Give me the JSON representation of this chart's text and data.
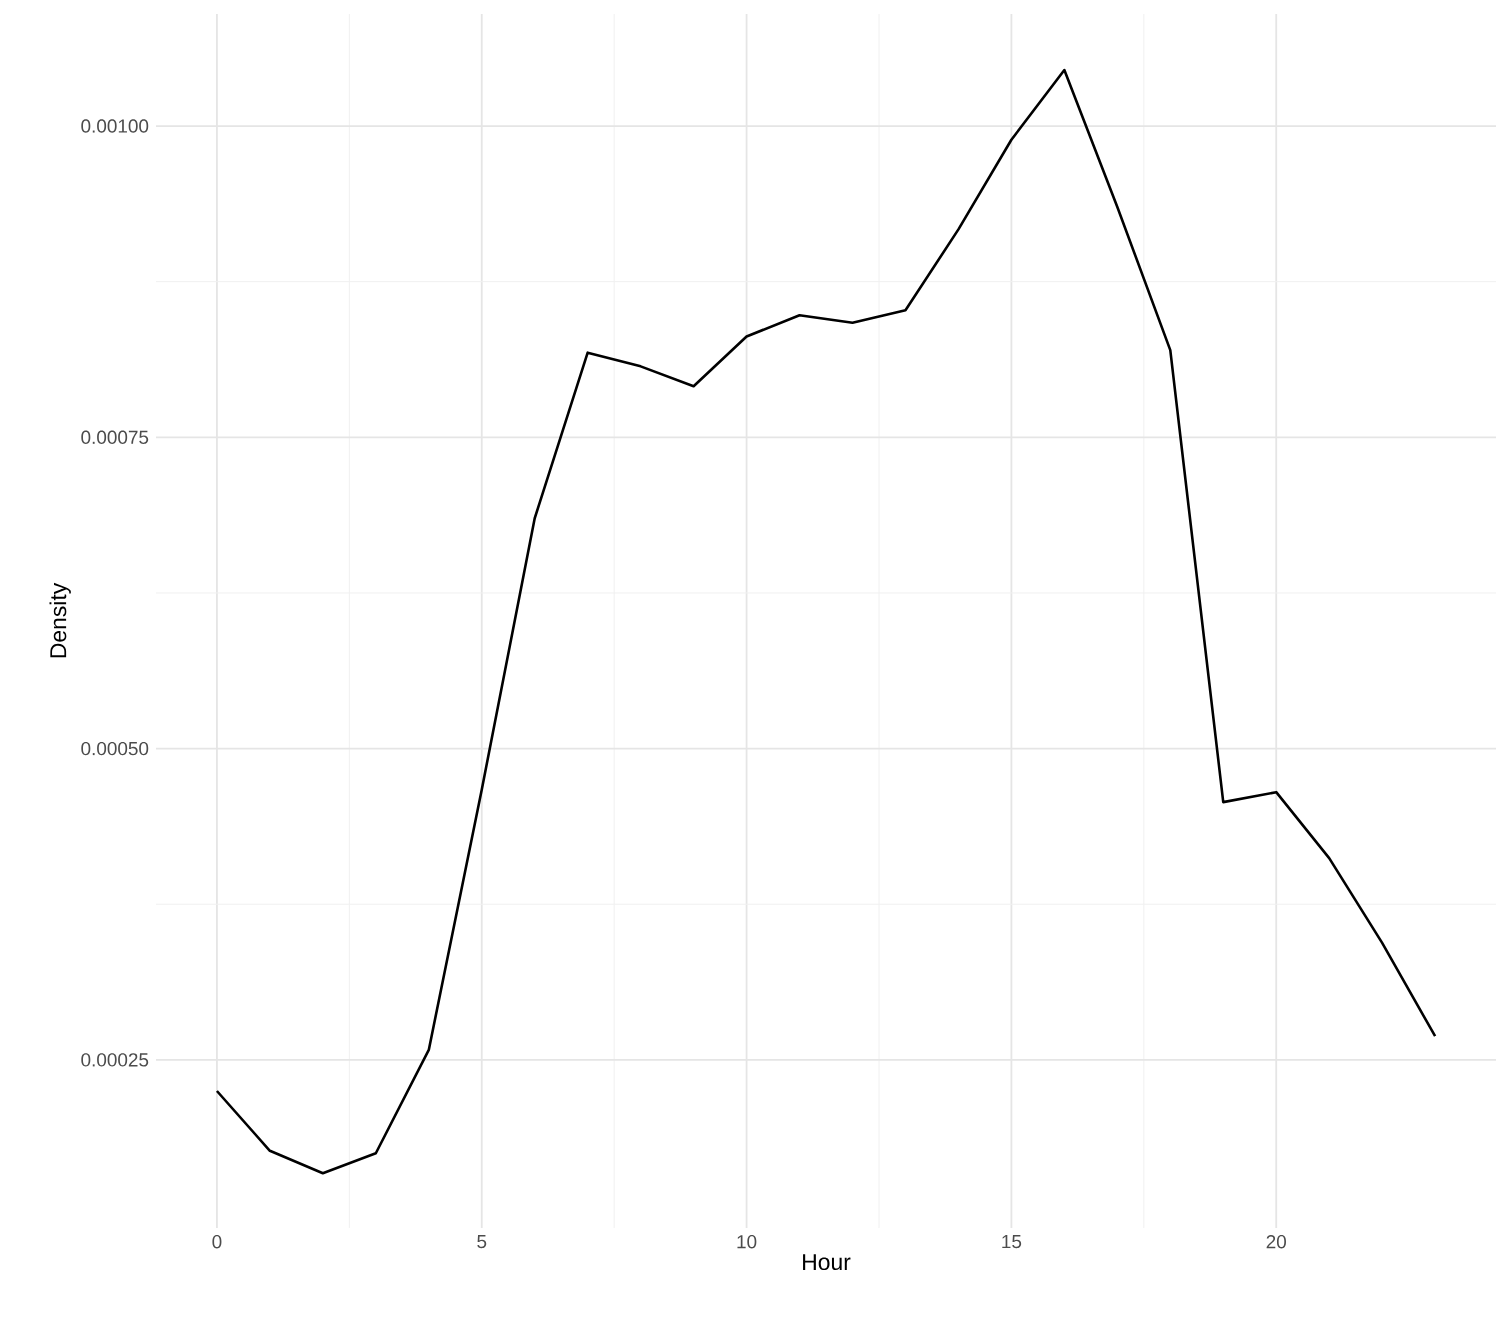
{
  "chart_data": {
    "type": "line",
    "xlabel": "Hour",
    "ylabel": "Density",
    "x": [
      0,
      1,
      2,
      3,
      4,
      5,
      6,
      7,
      8,
      9,
      10,
      11,
      12,
      13,
      14,
      15,
      16,
      17,
      18,
      19,
      20,
      21,
      22,
      23
    ],
    "series": [
      {
        "color": "#000000",
        "values": [
          0.000225,
          0.000177,
          0.000159,
          0.000175,
          0.000258,
          0.000467,
          0.000685,
          0.000818,
          0.000807,
          0.000791,
          0.000831,
          0.000848,
          0.000842,
          0.000852,
          0.000917,
          0.000989,
          0.001045,
          0.000935,
          0.00082,
          0.000457,
          0.000465,
          0.000412,
          0.000344,
          0.000269
        ]
      }
    ],
    "xlim": [
      -1.15,
      24.15
    ],
    "ylim": [
      0.000115,
      0.00109
    ],
    "xticks": [
      0,
      5,
      10,
      15,
      20
    ],
    "yticks": [
      {
        "value": 0.00025,
        "label": "0.00025"
      },
      {
        "value": 0.0005,
        "label": "0.00050"
      },
      {
        "value": 0.00075,
        "label": "0.00075"
      },
      {
        "value": 0.001,
        "label": "0.00100"
      }
    ],
    "grid": true
  }
}
